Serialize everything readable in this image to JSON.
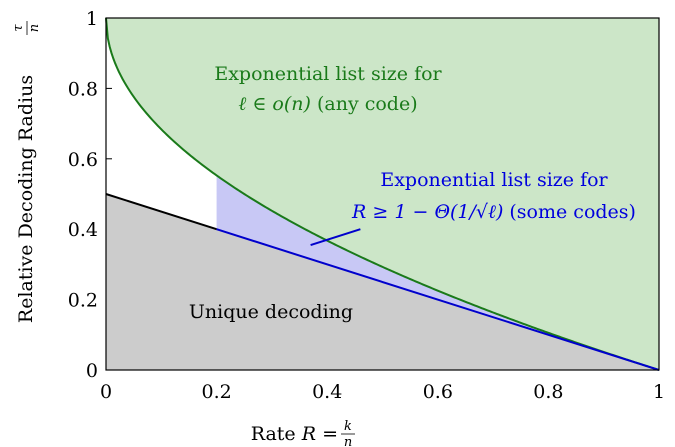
{
  "chart_data": {
    "type": "area",
    "xlim": [
      0,
      1
    ],
    "ylim": [
      0,
      1
    ],
    "grid": false,
    "x_ticks": [
      "0",
      "0.2",
      "0.4",
      "0.6",
      "0.8",
      "1"
    ],
    "y_ticks": [
      "0",
      "0.2",
      "0.4",
      "0.6",
      "0.8",
      "1"
    ],
    "xlabel": {
      "text": "Rate ",
      "math": "R",
      "eq": " = ",
      "frac_num": "k",
      "frac_den": "n"
    },
    "ylabel": {
      "text": "Relative Decoding Radius ",
      "frac_num": "τ",
      "frac_den": "n"
    },
    "regions": [
      {
        "name": "unique-decoding",
        "label": "Unique decoding",
        "fill": "#cccccc",
        "boundary": {
          "x": [
            0,
            1
          ],
          "y": [
            0.5,
            0
          ]
        }
      },
      {
        "name": "exponential-any-code",
        "label_line1": "Exponential list size for",
        "label_line2_math": "ℓ ∈ o(n)",
        "label_line2_text": " (any code)",
        "fill": "#cce6c8",
        "label_color": "#1a7a1a"
      },
      {
        "name": "exponential-some-codes",
        "label_line1": "Exponential list size for",
        "label_line2_math": "R ≥ 1 − Θ(1/√ℓ)",
        "label_line2_text": " (some codes)",
        "fill": "#c8c8f5",
        "label_color": "#0000dd",
        "x_range": [
          0.2,
          1
        ]
      }
    ],
    "series": [
      {
        "curve": "1 - sqrt(R)",
        "color": "#1a7a1a",
        "x": [
          0,
          0.01,
          0.04,
          0.09,
          0.16,
          0.25,
          0.36,
          0.49,
          0.64,
          0.81,
          1.0
        ],
        "y": [
          1,
          0.9,
          0.8,
          0.7,
          0.6,
          0.5,
          0.4,
          0.3,
          0.2,
          0.1,
          0
        ]
      },
      {
        "curve": "(1 - R) / 2",
        "color": "#000000",
        "x": [
          0,
          0.2
        ],
        "y": [
          0.5,
          0.4
        ]
      },
      {
        "curve": "(1 - R) / 2",
        "color": "#0000cc",
        "x": [
          0.2,
          1
        ],
        "y": [
          0.4,
          0
        ]
      }
    ],
    "colors": {
      "green_fill": "#cce6c8",
      "green_line": "#1a7a1a",
      "blue_fill": "#c8c8f5",
      "blue_line": "#0000cc",
      "gray_fill": "#cccccc"
    }
  }
}
